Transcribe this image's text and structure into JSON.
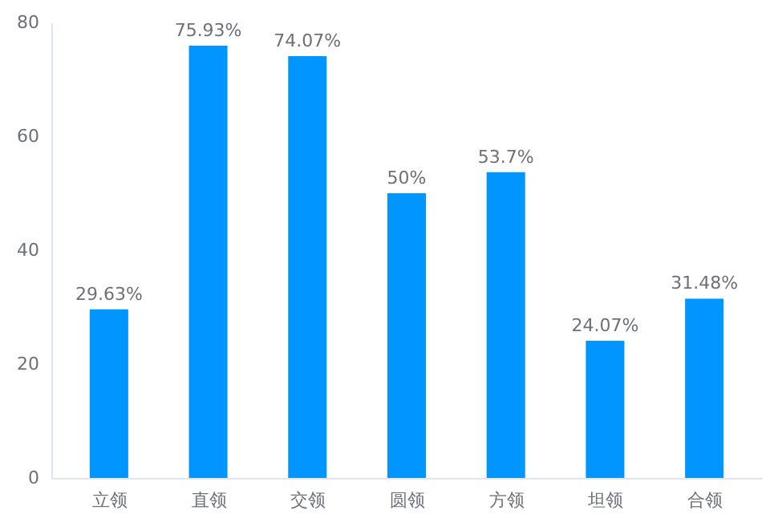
{
  "chart_data": {
    "type": "bar",
    "categories": [
      "立领",
      "直领",
      "交领",
      "圆领",
      "方领",
      "坦领",
      "合领"
    ],
    "values": [
      29.63,
      75.93,
      74.07,
      50,
      53.7,
      24.07,
      31.48
    ],
    "value_labels": [
      "29.63%",
      "75.93%",
      "74.07%",
      "50%",
      "53.7%",
      "24.07%",
      "31.48%"
    ],
    "color": "#0095ff",
    "ylim": [
      0,
      80
    ],
    "yticks": [
      0,
      20,
      40,
      60,
      80
    ],
    "grid": false
  }
}
